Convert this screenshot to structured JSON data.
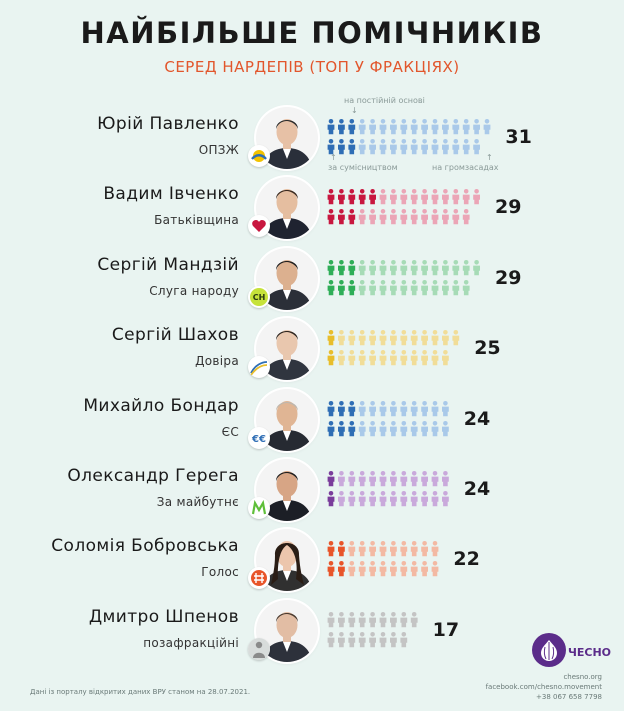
{
  "title": "НАЙБІЛЬШЕ ПОМІЧНИКІВ",
  "subtitle": "СЕРЕД НАРДЕПІВ (ТОП У ФРАКЦІЯХ)",
  "legend": {
    "permanent": "на постійній основі",
    "combined": "за сумісництвом",
    "volunteer": "на громзасадах"
  },
  "chart_data": {
    "type": "pictogram",
    "unit": "помічники",
    "categories": [
      "Юрій Павленко",
      "Вадим Івченко",
      "Сергій Мандзій",
      "Сергій Шахов",
      "Михайло Бондар",
      "Олександр Герега",
      "Соломія Бобровська",
      "Дмитро Шпенов"
    ],
    "factions": [
      "ОПЗЖ",
      "Батьківщина",
      "Слуга народу",
      "Довіра",
      "ЄС",
      "За майбутнє",
      "Голос",
      "позафракційні"
    ],
    "values": [
      31,
      29,
      29,
      25,
      24,
      24,
      22,
      17
    ],
    "rows": [
      {
        "name": "Юрій Павленко",
        "faction": "ОПЗЖ",
        "total": 31,
        "permanent": 3,
        "combined": 3,
        "color": "#2f6eb5",
        "light": "#a9c9e9",
        "logo": "opzzh-logo"
      },
      {
        "name": "Вадим Івченко",
        "faction": "Батьківщина",
        "total": 29,
        "permanent": 5,
        "combined": 3,
        "color": "#c8173f",
        "light": "#eba5b6",
        "logo": "heart-logo"
      },
      {
        "name": "Сергій Мандзій",
        "faction": "Слуга народу",
        "total": 29,
        "permanent": 3,
        "combined": 3,
        "color": "#2fae58",
        "light": "#a6dbb6",
        "logo": "sluha-narodu-logo"
      },
      {
        "name": "Сергій Шахов",
        "faction": "Довіра",
        "total": 25,
        "permanent": 1,
        "combined": 1,
        "color": "#e8be2c",
        "light": "#f1dd98",
        "logo": "dovira-logo"
      },
      {
        "name": "Михайло Бондар",
        "faction": "ЄС",
        "total": 24,
        "permanent": 3,
        "combined": 3,
        "color": "#2f6eb5",
        "light": "#a9c9e9",
        "logo": "es-logo"
      },
      {
        "name": "Олександр Герега",
        "faction": "За майбутнє",
        "total": 24,
        "permanent": 1,
        "combined": 1,
        "color": "#7a3d9b",
        "light": "#c9a9db",
        "logo": "za-maybutnie-logo"
      },
      {
        "name": "Соломія Бобровська",
        "faction": "Голос",
        "total": 22,
        "permanent": 2,
        "combined": 2,
        "color": "#e8552a",
        "light": "#f3b9a3",
        "logo": "holos-logo"
      },
      {
        "name": "Дмитро Шпенов",
        "faction": "позафракційні",
        "total": 17,
        "permanent": 0,
        "combined": 0,
        "color": "#7f7f7f",
        "light": "#c4c4c4",
        "logo": "person-logo"
      }
    ]
  },
  "footer": {
    "note": "Дані із порталу відкритих даних ВРУ станом на 28.07.2021.",
    "contact1": "chesno.org",
    "contact2": "facebook.com/chesno.movement",
    "contact3": "+38 067 658 7798",
    "brand": "ЧЕСНО"
  }
}
